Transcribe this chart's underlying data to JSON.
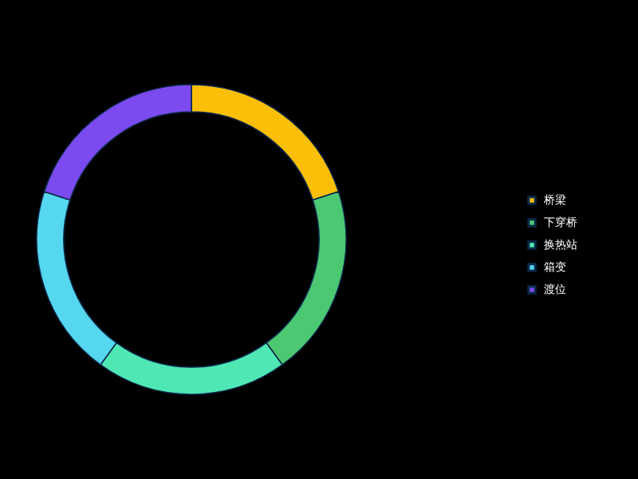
{
  "chart_data": {
    "type": "donut",
    "categories": [
      "桥梁",
      "下穿桥",
      "换热站",
      "箱变",
      "渡位"
    ],
    "values": [
      20,
      20,
      20,
      20,
      20
    ],
    "colors": [
      "#fcbf08",
      "#4cc872",
      "#4fe8b5",
      "#56d7f0",
      "#7b4bf0"
    ],
    "legend": "right"
  }
}
